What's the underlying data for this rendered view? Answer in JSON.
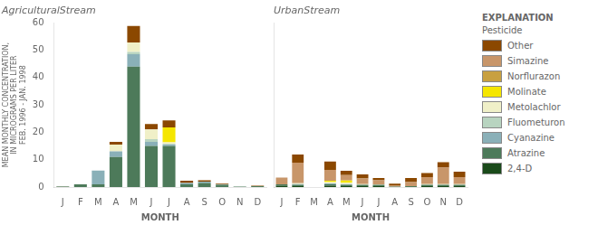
{
  "chart_data": [
    {
      "type": "bar",
      "title": "AgriculturalStream",
      "stacked": true,
      "grid": false,
      "categories": [
        "J",
        "F",
        "M",
        "A",
        "M",
        "J",
        "J",
        "A",
        "S",
        "O",
        "N",
        "D"
      ],
      "xlabel": "MONTH",
      "ylabel": "MEAN MONTHLY CONCENTRATION,\nIN MICROGRAMS PER LITER\nFEB. 1996 - JAN. 1998",
      "ylim": [
        0,
        60
      ],
      "yticks": [
        0,
        10,
        20,
        30,
        40,
        50,
        60
      ],
      "series": [
        {
          "name": "2,4-D",
          "color": "#1a4a1a",
          "values": [
            0.2,
            0.0,
            0.0,
            0.0,
            0.0,
            0.0,
            0.0,
            0.0,
            0.0,
            0.0,
            0.0,
            0.0
          ]
        },
        {
          "name": "Atrazine",
          "color": "#4d7a5a",
          "values": [
            0.0,
            1.0,
            1.0,
            11.0,
            44.0,
            15.0,
            15.0,
            1.0,
            1.5,
            0.8,
            0.2,
            0.3
          ]
        },
        {
          "name": "Cyanazine",
          "color": "#8ab0b8",
          "values": [
            0.0,
            0.0,
            5.0,
            2.0,
            4.5,
            1.5,
            0.5,
            0.5,
            0.5,
            0.2,
            0.0,
            0.0
          ]
        },
        {
          "name": "Fluometuron",
          "color": "#b8d4c0",
          "values": [
            0.0,
            0.0,
            0.0,
            0.0,
            0.8,
            1.0,
            0.3,
            0.0,
            0.0,
            0.0,
            0.0,
            0.0
          ]
        },
        {
          "name": "Metolachlor",
          "color": "#f0f0c8",
          "values": [
            0.0,
            0.0,
            0.0,
            2.5,
            3.5,
            3.5,
            0.5,
            0.0,
            0.0,
            0.0,
            0.0,
            0.0
          ]
        },
        {
          "name": "Molinate",
          "color": "#f5e600",
          "values": [
            0.0,
            0.0,
            0.0,
            0.0,
            0.0,
            0.0,
            5.5,
            0.0,
            0.0,
            0.0,
            0.0,
            0.0
          ]
        },
        {
          "name": "Norflurazon",
          "color": "#c8a040",
          "values": [
            0.0,
            0.0,
            0.0,
            0.0,
            0.0,
            0.0,
            0.0,
            0.0,
            0.0,
            0.0,
            0.0,
            0.0
          ]
        },
        {
          "name": "Simazine",
          "color": "#c8966a",
          "values": [
            0.0,
            0.0,
            0.0,
            0.0,
            0.0,
            0.0,
            0.0,
            0.0,
            0.0,
            0.0,
            0.0,
            0.0
          ]
        },
        {
          "name": "Other",
          "color": "#8b4800",
          "values": [
            0.0,
            0.0,
            0.0,
            1.0,
            6.0,
            2.0,
            2.5,
            0.8,
            0.5,
            0.2,
            0.0,
            0.2
          ]
        }
      ]
    },
    {
      "type": "bar",
      "title": "UrbanStream",
      "stacked": true,
      "grid": false,
      "tick_labels": "x",
      "legend": "right",
      "annotations": [
        "EXPLANATION",
        "Pesticide"
      ],
      "categories": [
        "J",
        "F",
        "M",
        "A",
        "M",
        "J",
        "J",
        "A",
        "S",
        "O",
        "N",
        "D"
      ],
      "xlabel": "MONTH",
      "ylim": [
        0,
        60
      ],
      "yticks": [
        0,
        10,
        20,
        30,
        40,
        50,
        60
      ],
      "series": [
        {
          "name": "2,4-D",
          "color": "#1a4a1a",
          "values": [
            0.5,
            0.3,
            0.0,
            0.5,
            0.3,
            0.3,
            0.3,
            0.0,
            0.0,
            0.3,
            0.3,
            0.3
          ]
        },
        {
          "name": "Atrazine",
          "color": "#4d7a5a",
          "values": [
            0.5,
            0.5,
            0.0,
            0.5,
            0.5,
            0.5,
            0.5,
            0.2,
            0.3,
            0.5,
            0.5,
            0.5
          ]
        },
        {
          "name": "Cyanazine",
          "color": "#8ab0b8",
          "values": [
            0.0,
            0.3,
            0.0,
            0.3,
            0.3,
            0.0,
            0.0,
            0.0,
            0.0,
            0.0,
            0.0,
            0.0
          ]
        },
        {
          "name": "Fluometuron",
          "color": "#b8d4c0",
          "values": [
            0.0,
            0.0,
            0.0,
            0.0,
            0.0,
            0.0,
            0.0,
            0.0,
            0.0,
            0.0,
            0.0,
            0.0
          ]
        },
        {
          "name": "Metolachlor",
          "color": "#f0f0c8",
          "values": [
            0.0,
            0.3,
            0.0,
            0.5,
            0.5,
            0.3,
            0.2,
            0.0,
            0.0,
            0.3,
            0.3,
            0.3
          ]
        },
        {
          "name": "Molinate",
          "color": "#f5e600",
          "values": [
            0.0,
            0.0,
            0.0,
            0.5,
            0.8,
            0.0,
            0.0,
            0.0,
            0.0,
            0.0,
            0.0,
            0.0
          ]
        },
        {
          "name": "Norflurazon",
          "color": "#c8a040",
          "values": [
            0.0,
            0.0,
            0.0,
            0.0,
            0.0,
            0.0,
            0.0,
            0.0,
            0.0,
            0.0,
            0.0,
            0.0
          ]
        },
        {
          "name": "Simazine",
          "color": "#c8966a",
          "values": [
            2.5,
            7.5,
            0.0,
            4.0,
            2.0,
            2.0,
            1.5,
            0.5,
            1.5,
            2.5,
            6.0,
            2.5
          ]
        },
        {
          "name": "Other",
          "color": "#8b4800",
          "values": [
            0.0,
            3.0,
            0.0,
            3.0,
            1.5,
            1.5,
            0.8,
            0.5,
            1.5,
            1.5,
            2.0,
            2.0
          ]
        }
      ]
    }
  ]
}
